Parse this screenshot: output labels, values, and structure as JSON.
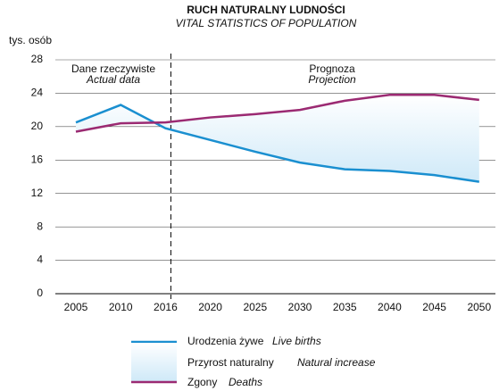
{
  "chart_data": {
    "type": "line",
    "title": "RUCH NATURALNY LUDNOŚCI",
    "subtitle": "VITAL STATISTICS OF POPULATION",
    "y_label": "tys. osób",
    "categories": [
      "2005",
      "2010",
      "2016",
      "2020",
      "2025",
      "2030",
      "2035",
      "2040",
      "2045",
      "2050"
    ],
    "series": [
      {
        "name": "Urodzenia żywe",
        "name_en": "Live births",
        "color": "#1a8fd0",
        "values": [
          20.5,
          22.6,
          19.8,
          18.4,
          17.0,
          15.7,
          14.9,
          14.7,
          14.2,
          13.4
        ]
      },
      {
        "name": "Zgony",
        "name_en": "Deaths",
        "color": "#9b2a72",
        "values": [
          19.4,
          20.4,
          20.5,
          21.1,
          21.5,
          22.0,
          23.1,
          23.8,
          23.8,
          23.2
        ]
      }
    ],
    "area": {
      "name": "Przyrost naturalny",
      "name_en": "Natural increase",
      "color": "#cfe9f8"
    },
    "annotations": [
      {
        "text": "Dane rzeczywiste",
        "text_en": "Actual data"
      },
      {
        "text": "Prognoza",
        "text_en": "Projection"
      }
    ],
    "divider": "2016",
    "ylim": [
      0,
      28
    ],
    "yticks": [
      0,
      4,
      8,
      12,
      16,
      20,
      24,
      28
    ],
    "grid": true
  }
}
